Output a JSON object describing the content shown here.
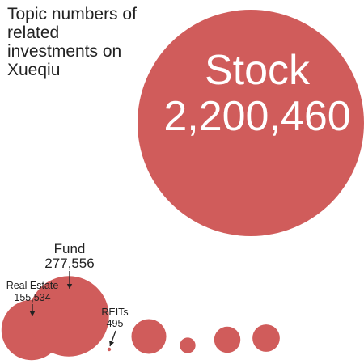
{
  "chart_data": {
    "type": "bubble",
    "title": "Topic numbers of related investments on Xueqiu",
    "color": "#d05c5b",
    "series": [
      {
        "name": "Stock",
        "label": "Stock",
        "value": 2200460,
        "value_text": "2,200,460"
      },
      {
        "name": "Real Estate",
        "label": "Real Estate",
        "value": 155534,
        "value_text": "155,534"
      },
      {
        "name": "Fund",
        "label": "Fund",
        "value": 277556,
        "value_text": "277,556"
      },
      {
        "name": "REITs",
        "label": "REITs",
        "value": 495,
        "value_text": "495"
      },
      {
        "name": "unlabeled-1",
        "value": 52000
      },
      {
        "name": "unlabeled-2",
        "value": 10500
      },
      {
        "name": "unlabeled-3",
        "value": 29500
      },
      {
        "name": "unlabeled-4",
        "value": 32000
      }
    ]
  }
}
